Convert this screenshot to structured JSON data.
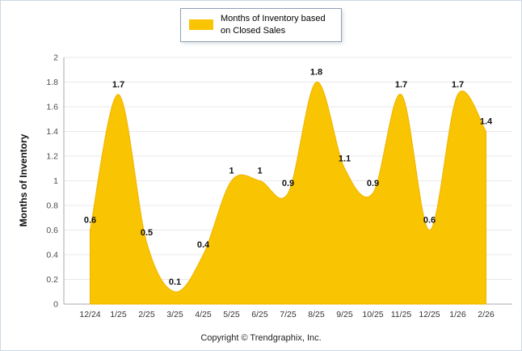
{
  "legend": {
    "label": "Months of Inventory based on Closed Sales",
    "swatch_color": "#F9C401"
  },
  "footer": {
    "copyright": "Copyright © Trendgraphix, Inc."
  },
  "chart_data": {
    "type": "area",
    "title": "",
    "xlabel": "",
    "ylabel": "Months of Inventory",
    "categories": [
      "12/24",
      "1/25",
      "2/25",
      "3/25",
      "4/25",
      "5/25",
      "6/25",
      "7/25",
      "8/25",
      "9/25",
      "10/25",
      "11/25",
      "12/25",
      "1/26",
      "2/26"
    ],
    "values": [
      0.6,
      1.7,
      0.5,
      0.1,
      0.4,
      1,
      1,
      0.9,
      1.8,
      1.1,
      0.9,
      1.7,
      0.6,
      1.7,
      1.4
    ],
    "ylim": [
      0,
      2
    ],
    "ytick_step": 0.2,
    "grid": true,
    "smooth": true,
    "data_labels": true,
    "area_color": "#F9C401",
    "area_edge_color": "#F0B400",
    "legend_position": "top-center",
    "legend_entries": [
      {
        "label": "Months of Inventory based on Closed Sales",
        "color": "#F9C401"
      }
    ]
  }
}
